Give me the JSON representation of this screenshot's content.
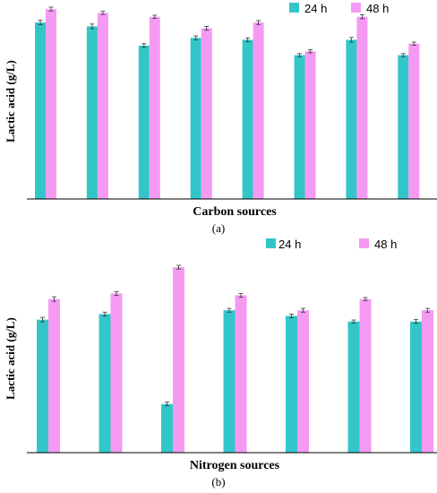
{
  "colors": {
    "series_24h": "#33C6C9",
    "series_48h": "#F59AF2",
    "error_bar": "#333333"
  },
  "chart_data": [
    {
      "type": "bar",
      "panel_label": "(a)",
      "xlabel": "Carbon sources",
      "ylabel": "Lactic acid (g/L)",
      "categories": [
        "",
        "",
        "",
        "",
        "",
        "",
        "",
        ""
      ],
      "ylim": [
        0,
        100
      ],
      "grid": false,
      "legend": "top-right",
      "series": [
        {
          "name": "24 h",
          "values": [
            92,
            90,
            80,
            84,
            83,
            75,
            83,
            75
          ],
          "errors": [
            1.2,
            1.2,
            1.0,
            1.0,
            1.0,
            0.8,
            1.2,
            0.8
          ]
        },
        {
          "name": "48 h",
          "values": [
            99,
            97,
            95,
            89,
            92,
            77,
            95,
            81
          ],
          "errors": [
            1.0,
            0.8,
            0.8,
            1.0,
            1.0,
            0.8,
            1.0,
            0.8
          ]
        }
      ]
    },
    {
      "type": "bar",
      "panel_label": "(b)",
      "xlabel": "Nitrogen sources",
      "ylabel": "Lactic acid (g/L)",
      "categories": [
        "",
        "",
        "",
        "",
        "",
        "",
        ""
      ],
      "ylim": [
        0,
        100
      ],
      "grid": false,
      "legend": "top-right",
      "series": [
        {
          "name": "24 h",
          "values": [
            71,
            74,
            26,
            76,
            73,
            70,
            70
          ],
          "errors": [
            1.2,
            1.0,
            1.0,
            1.0,
            1.0,
            0.8,
            1.0
          ]
        },
        {
          "name": "48 h",
          "values": [
            82,
            85,
            99,
            84,
            76,
            82,
            76
          ],
          "errors": [
            1.2,
            1.0,
            1.0,
            1.0,
            1.0,
            0.8,
            1.0
          ]
        }
      ]
    }
  ]
}
